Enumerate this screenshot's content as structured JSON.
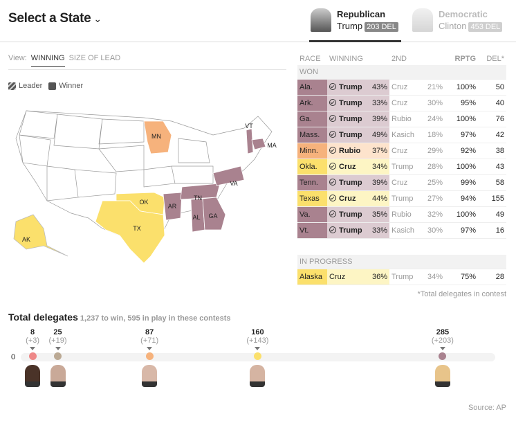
{
  "header": {
    "title": "Select a State",
    "chevron_icon": "chevron-down-icon",
    "tabs": [
      {
        "party": "Republican",
        "candidate": "Trump",
        "delegates": "203 DEL",
        "active": true
      },
      {
        "party": "Democratic",
        "candidate": "Clinton",
        "delegates": "453 DEL",
        "active": false
      }
    ]
  },
  "view": {
    "label": "View:",
    "options": [
      "WINNING",
      "SIZE OF LEAD"
    ],
    "selected": "WINNING"
  },
  "legend": {
    "leader": "Leader",
    "winner": "Winner"
  },
  "colors": {
    "Trump": "#a9828f",
    "Rubio": "#f6b27c",
    "Cruz": "#fbe06c",
    "Carson": "#ee8888",
    "Kasich": "#bba994"
  },
  "map": {
    "labels": [
      "MN",
      "VT",
      "MA",
      "OK",
      "AR",
      "TN",
      "VA",
      "TX",
      "AL",
      "GA",
      "AK"
    ]
  },
  "table": {
    "columns": [
      "RACE",
      "WINNING",
      "2ND",
      "",
      "RPTG",
      "DEL*"
    ],
    "won_label": "WON",
    "won": [
      {
        "race": "Ala.",
        "winner": "Trump",
        "wpct": "43%",
        "second": "Cruz",
        "spct": "21%",
        "rptg": "100%",
        "del": "50"
      },
      {
        "race": "Ark.",
        "winner": "Trump",
        "wpct": "33%",
        "second": "Cruz",
        "spct": "30%",
        "rptg": "95%",
        "del": "40"
      },
      {
        "race": "Ga.",
        "winner": "Trump",
        "wpct": "39%",
        "second": "Rubio",
        "spct": "24%",
        "rptg": "100%",
        "del": "76"
      },
      {
        "race": "Mass.",
        "winner": "Trump",
        "wpct": "49%",
        "second": "Kasich",
        "spct": "18%",
        "rptg": "97%",
        "del": "42"
      },
      {
        "race": "Minn.",
        "winner": "Rubio",
        "wpct": "37%",
        "second": "Cruz",
        "spct": "29%",
        "rptg": "92%",
        "del": "38"
      },
      {
        "race": "Okla.",
        "winner": "Cruz",
        "wpct": "34%",
        "second": "Trump",
        "spct": "28%",
        "rptg": "100%",
        "del": "43"
      },
      {
        "race": "Tenn.",
        "winner": "Trump",
        "wpct": "39%",
        "second": "Cruz",
        "spct": "25%",
        "rptg": "99%",
        "del": "58"
      },
      {
        "race": "Texas",
        "winner": "Cruz",
        "wpct": "44%",
        "second": "Trump",
        "spct": "27%",
        "rptg": "94%",
        "del": "155"
      },
      {
        "race": "Va.",
        "winner": "Trump",
        "wpct": "35%",
        "second": "Rubio",
        "spct": "32%",
        "rptg": "100%",
        "del": "49"
      },
      {
        "race": "Vt.",
        "winner": "Trump",
        "wpct": "33%",
        "second": "Kasich",
        "spct": "30%",
        "rptg": "97%",
        "del": "16"
      }
    ],
    "progress_label": "IN PROGRESS",
    "progress": [
      {
        "race": "Alaska",
        "winner": "Cruz",
        "wpct": "36%",
        "second": "Trump",
        "spct": "34%",
        "rptg": "75%",
        "del": "28"
      }
    ],
    "footnote": "*Total delegates in contest"
  },
  "delegates": {
    "title": "Total delegates",
    "subtitle": "1,237 to win, 595 in play in these contests",
    "zero": "0",
    "candidates": [
      {
        "name": "Carson",
        "total": 8,
        "gain": "(+3)"
      },
      {
        "name": "Kasich",
        "total": 25,
        "gain": "(+19)"
      },
      {
        "name": "Rubio",
        "total": 87,
        "gain": "(+71)"
      },
      {
        "name": "Cruz",
        "total": 160,
        "gain": "(+143)"
      },
      {
        "name": "Trump",
        "total": 285,
        "gain": "(+203)"
      }
    ]
  },
  "source": "Source: AP"
}
